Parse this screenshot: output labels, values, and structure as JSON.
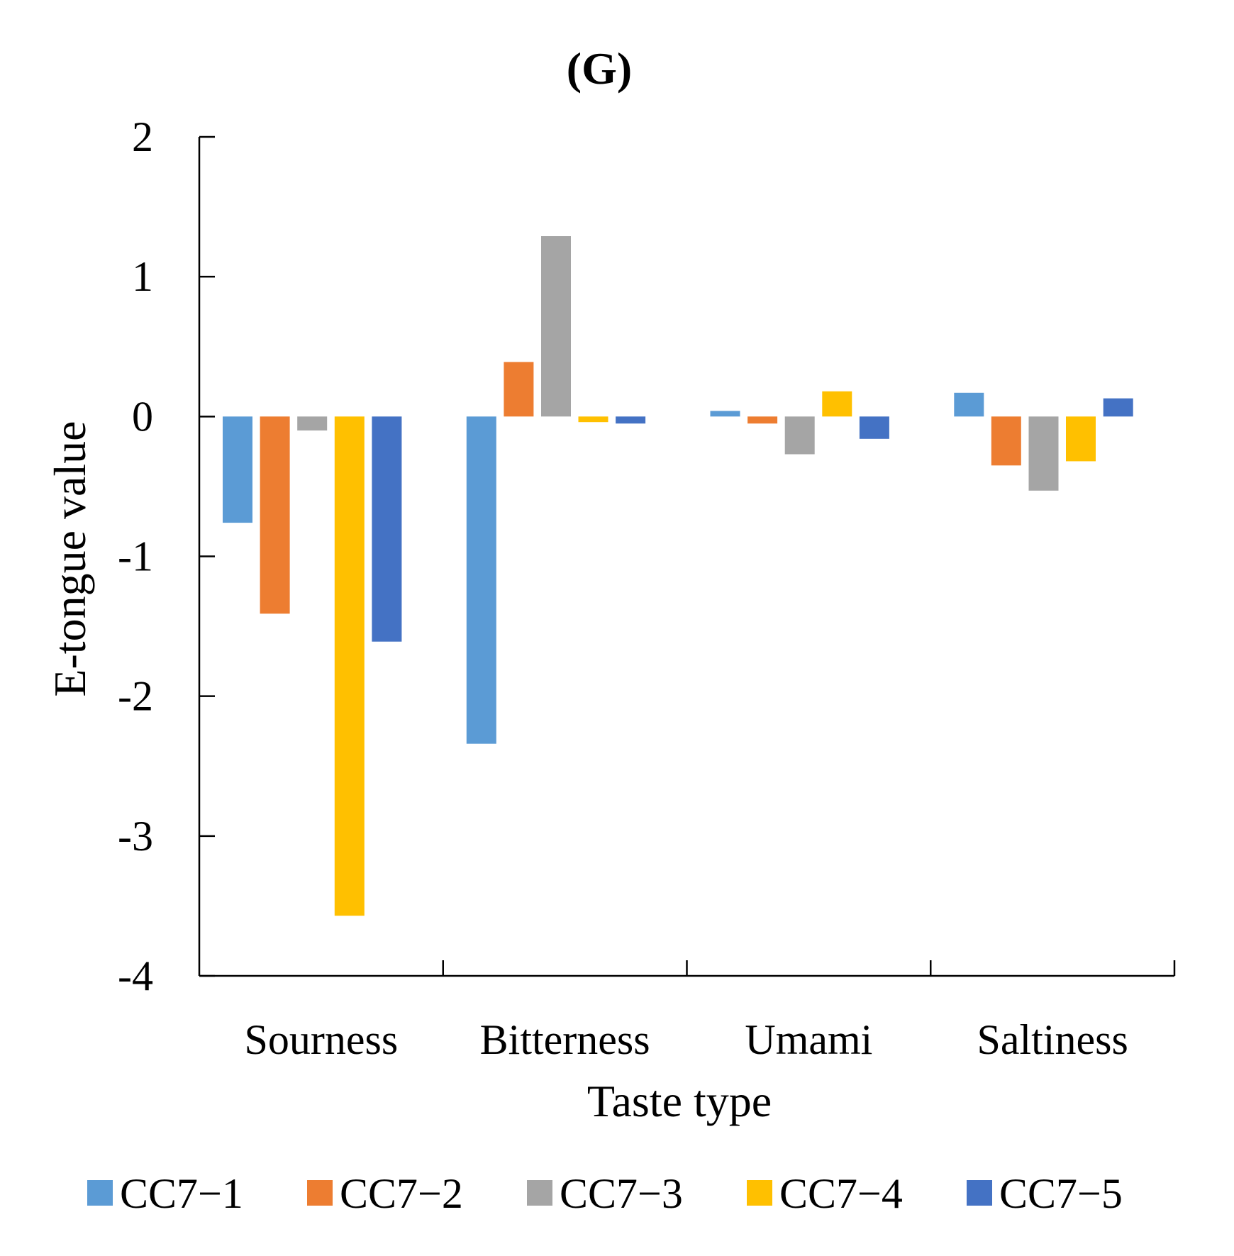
{
  "chart_data": {
    "type": "bar",
    "title": "(G)",
    "xlabel": "Taste type",
    "ylabel": "E-tongue value",
    "ylim": [
      -4,
      2
    ],
    "yticks": [
      -4,
      -3,
      -2,
      -1,
      0,
      1,
      2
    ],
    "ytick_labels": [
      "-4",
      "-3",
      "-2",
      "-1",
      "0",
      "1",
      "2"
    ],
    "categories": [
      "Sourness",
      "Bitterness",
      "Umami",
      "Saltiness"
    ],
    "series": [
      {
        "name": "CC7−1",
        "color": "#5B9BD5",
        "values": [
          -0.76,
          -2.34,
          0.04,
          0.17
        ]
      },
      {
        "name": "CC7−2",
        "color": "#ED7D31",
        "values": [
          -1.41,
          0.39,
          -0.05,
          -0.35
        ]
      },
      {
        "name": "CC7−3",
        "color": "#A5A5A5",
        "values": [
          -0.1,
          1.29,
          -0.27,
          -0.53
        ]
      },
      {
        "name": "CC7−4",
        "color": "#FFC000",
        "values": [
          -3.57,
          -0.04,
          0.18,
          -0.32
        ]
      },
      {
        "name": "CC7−5",
        "color": "#4472C4",
        "values": [
          -1.61,
          -0.05,
          -0.16,
          0.13
        ]
      }
    ],
    "legend_position": "bottom",
    "grid": false
  }
}
